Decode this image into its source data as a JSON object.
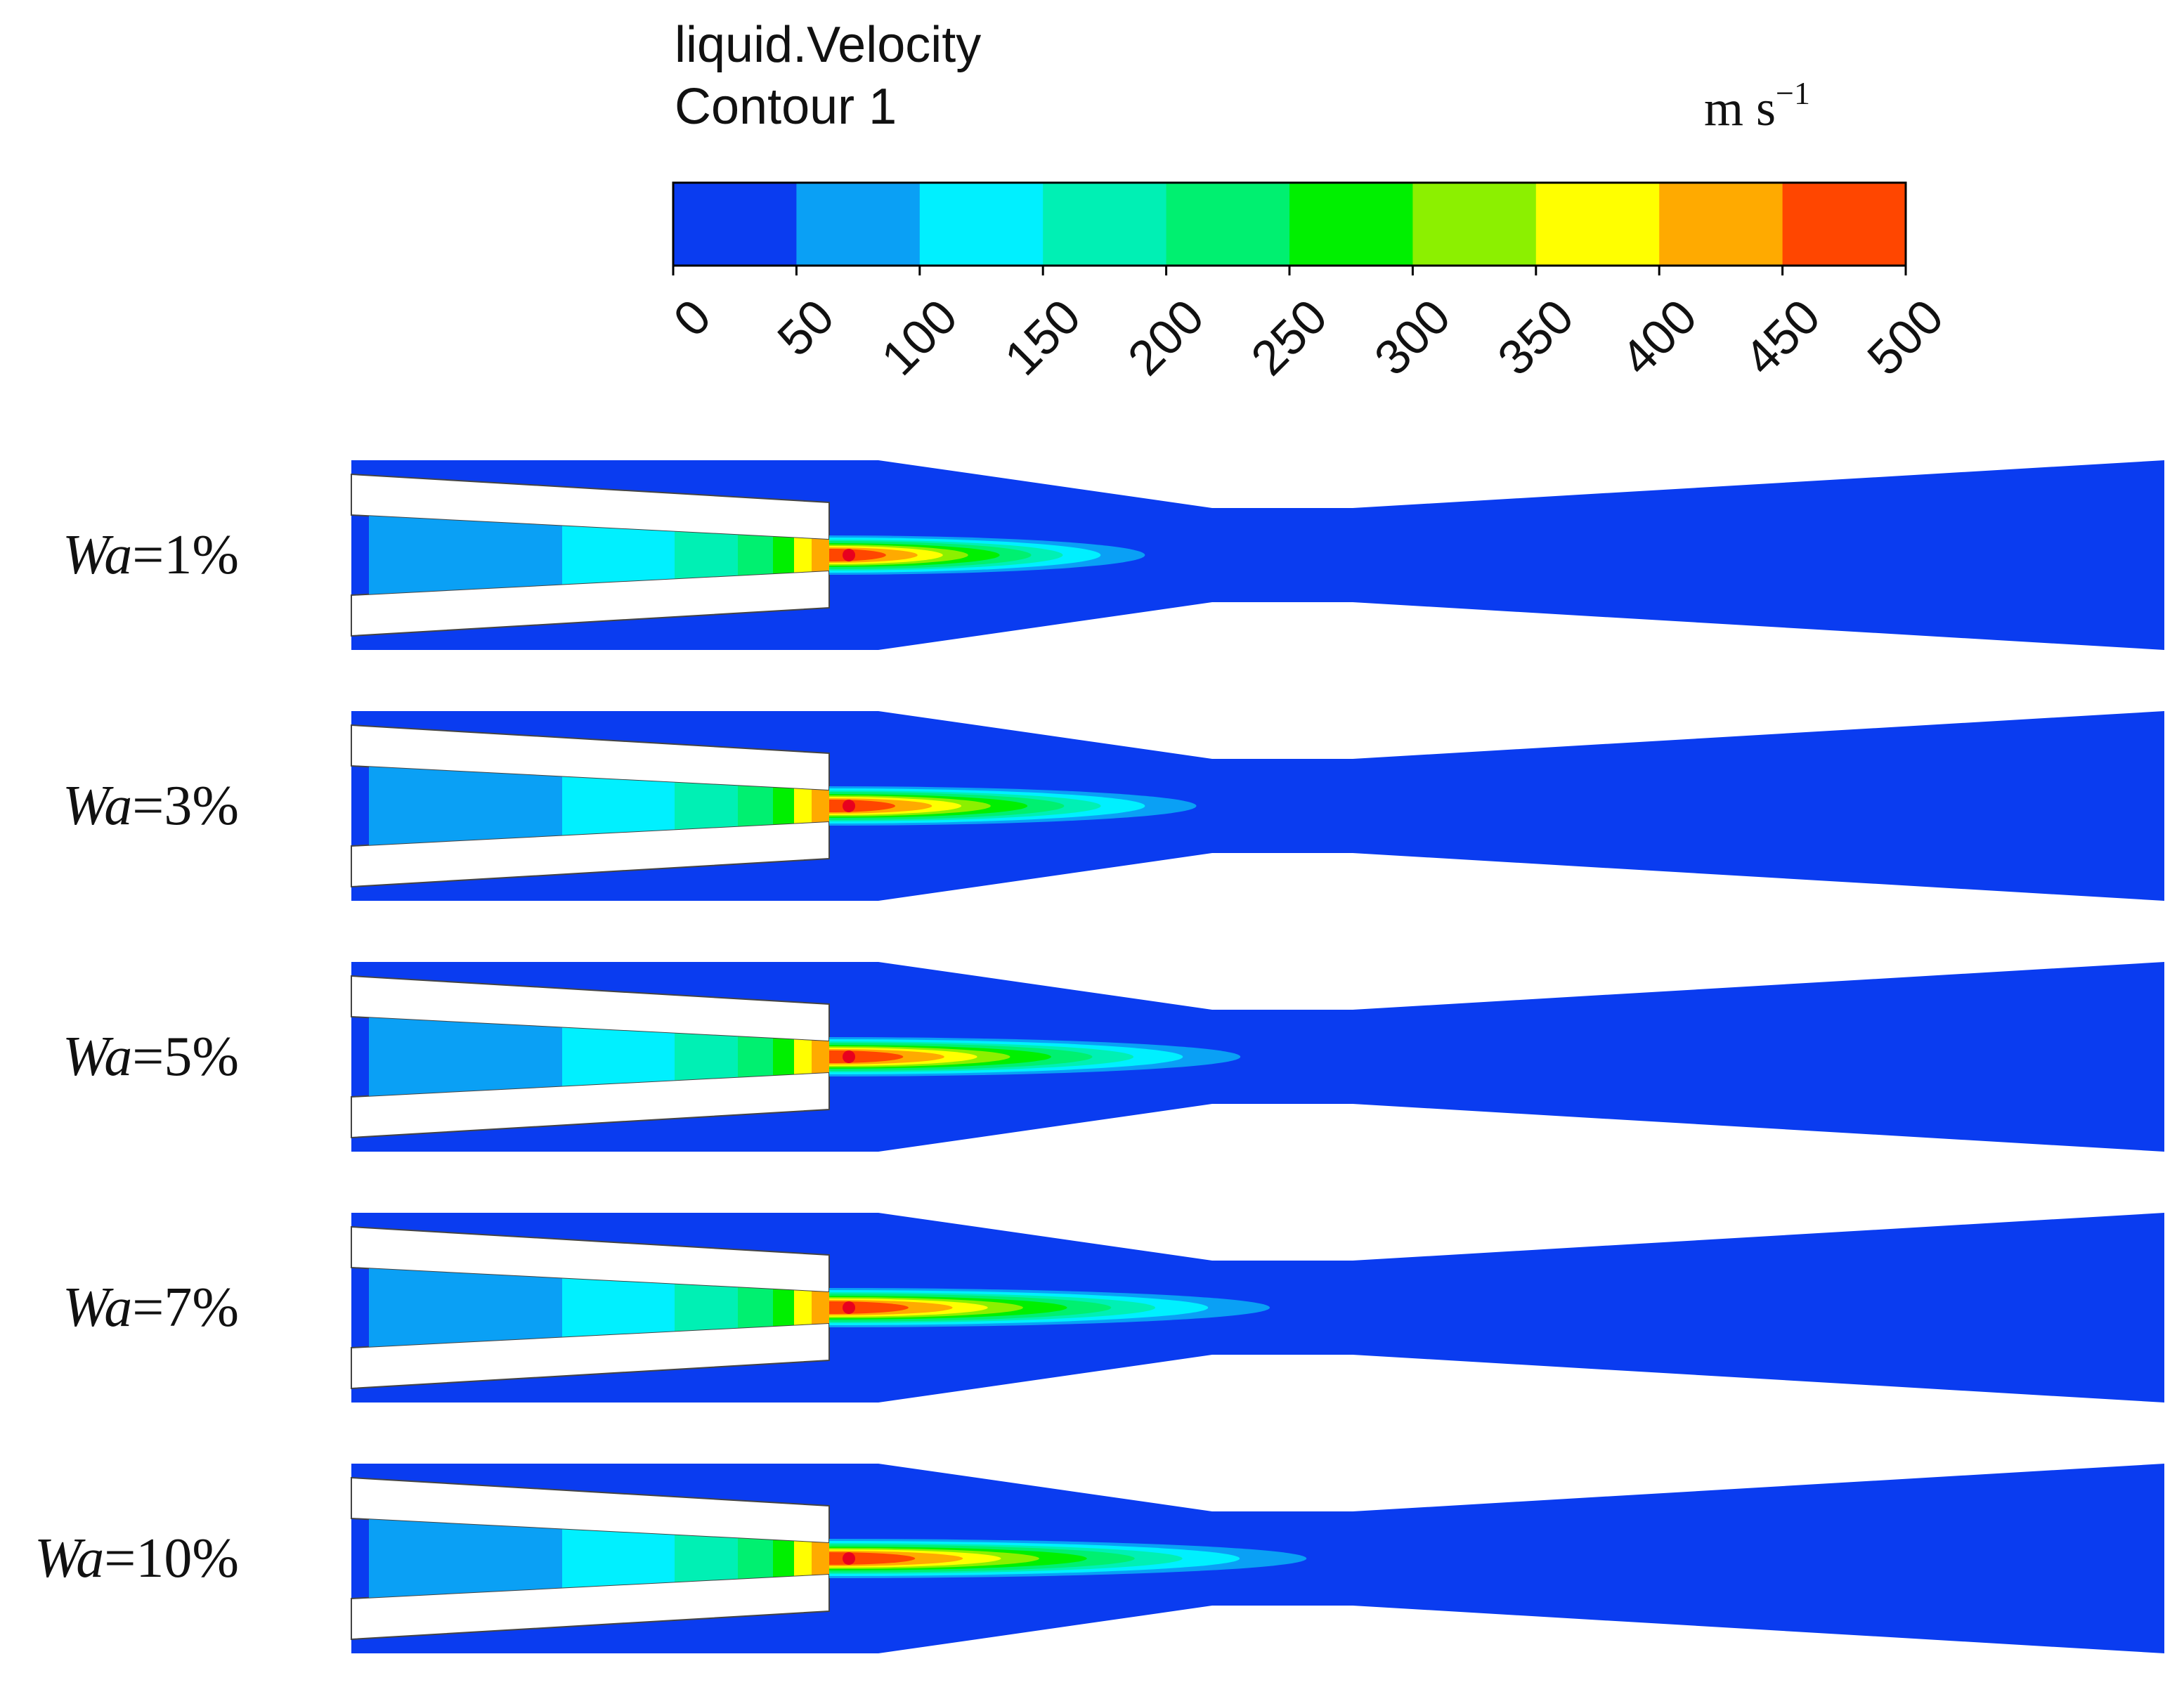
{
  "header": {
    "title_line1": "liquid.Velocity",
    "title_line2": "Contour 1",
    "unit_text": "m s",
    "unit_exponent": "−1"
  },
  "colorbar": {
    "min": 0,
    "max": 500,
    "step": 50,
    "tick_labels": [
      "0",
      "50",
      "100",
      "150",
      "200",
      "250",
      "300",
      "350",
      "400",
      "450",
      "500"
    ],
    "colors": [
      "#0a3cf0",
      "#0aa0f5",
      "#00f0ff",
      "#00f0b4",
      "#00f070",
      "#00f000",
      "#8cf000",
      "#ffff00",
      "#ffaa00",
      "#ff4600"
    ]
  },
  "rows": [
    {
      "label_var": "Wa",
      "label_value": "=1%",
      "jet_reach": 0.43
    },
    {
      "label_var": "Wa",
      "label_value": "=3%",
      "jet_reach": 0.5
    },
    {
      "label_var": "Wa",
      "label_value": "=5%",
      "jet_reach": 0.56
    },
    {
      "label_var": "Wa",
      "label_value": "=7%",
      "jet_reach": 0.6
    },
    {
      "label_var": "Wa",
      "label_value": "=10%",
      "jet_reach": 0.65
    }
  ]
}
